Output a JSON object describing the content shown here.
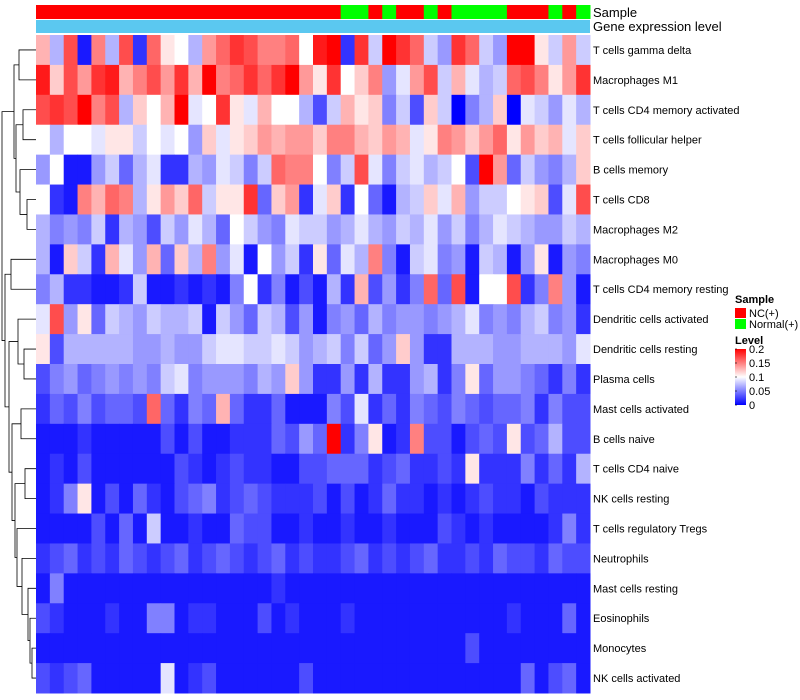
{
  "chart_data": {
    "type": "heatmap",
    "columns": 40,
    "rows": [
      "T cells gamma delta",
      "Macrophages M1",
      "T cells CD4 memory activated",
      "T cells follicular helper",
      "B cells memory",
      "T cells CD8",
      "Macrophages M2",
      "Macrophages M0",
      "T cells CD4 memory resting",
      "Dendritic cells activated",
      "Dendritic cells resting",
      "Plasma cells",
      "Mast cells activated",
      "B cells naive",
      "T cells CD4 naive",
      "NK cells resting",
      "T cells regulatory  Tregs",
      "Neutrophils",
      "Mast cells resting",
      "Eosinophils",
      "Monocytes",
      "NK cells activated"
    ],
    "annotations": {
      "sample_label": "Sample",
      "level_label": "Gene expression level",
      "sample_groups": [
        "NC",
        "NC",
        "NC",
        "NC",
        "NC",
        "NC",
        "NC",
        "NC",
        "NC",
        "NC",
        "NC",
        "NC",
        "NC",
        "NC",
        "NC",
        "NC",
        "NC",
        "NC",
        "NC",
        "NC",
        "NC",
        "NC",
        "Normal",
        "Normal",
        "NC",
        "Normal",
        "NC",
        "NC",
        "Normal",
        "NC",
        "Normal",
        "Normal",
        "Normal",
        "Normal",
        "NC",
        "NC",
        "NC",
        "Normal",
        "NC",
        "Normal"
      ]
    },
    "legend": {
      "sample_title": "Sample",
      "sample_items": [
        {
          "label": "NC(+)",
          "color": "#ff0000"
        },
        {
          "label": "Normal(+)",
          "color": "#00ff00"
        }
      ],
      "level_title": "Level",
      "level_ticks": [
        "0.2",
        "0.15",
        "0.1",
        "0.05",
        "0"
      ],
      "color_low": "#0000ff",
      "color_mid": "#ffffff",
      "color_high": "#ff0000",
      "range": [
        0,
        0.2
      ]
    },
    "values": [
      [
        0.13,
        0.07,
        0.17,
        0.01,
        0.15,
        0.07,
        0.17,
        0.02,
        0.16,
        0.11,
        0.1,
        0.07,
        0.14,
        0.16,
        0.18,
        0.17,
        0.15,
        0.15,
        0.16,
        0.1,
        0.19,
        0.2,
        0.02,
        0.18,
        0.08,
        0.2,
        0.18,
        0.16,
        0.08,
        0.06,
        0.18,
        0.16,
        0.08,
        0.06,
        0.2,
        0.2,
        0.11,
        0.08,
        0.14,
        0.08
      ],
      [
        0.19,
        0.12,
        0.17,
        0.14,
        0.18,
        0.19,
        0.13,
        0.15,
        0.17,
        0.14,
        0.18,
        0.13,
        0.2,
        0.15,
        0.16,
        0.18,
        0.16,
        0.18,
        0.2,
        0.14,
        0.11,
        0.18,
        0.1,
        0.12,
        0.15,
        0.06,
        0.09,
        0.14,
        0.17,
        0.08,
        0.13,
        0.09,
        0.07,
        0.08,
        0.16,
        0.17,
        0.15,
        0.11,
        0.14,
        0.18
      ],
      [
        0.17,
        0.18,
        0.17,
        0.2,
        0.15,
        0.17,
        0.07,
        0.12,
        0.1,
        0.13,
        0.2,
        0.09,
        0.1,
        0.18,
        0.11,
        0.09,
        0.13,
        0.1,
        0.1,
        0.07,
        0.03,
        0.08,
        0.13,
        0.11,
        0.12,
        0.05,
        0.08,
        0.03,
        0.12,
        0.08,
        0.0,
        0.05,
        0.07,
        0.12,
        0.0,
        0.09,
        0.08,
        0.06,
        0.09,
        0.07
      ],
      [
        0.1,
        0.07,
        0.1,
        0.1,
        0.09,
        0.11,
        0.11,
        0.08,
        0.1,
        0.09,
        0.1,
        0.06,
        0.12,
        0.09,
        0.11,
        0.12,
        0.14,
        0.13,
        0.14,
        0.14,
        0.12,
        0.15,
        0.15,
        0.13,
        0.12,
        0.14,
        0.13,
        0.09,
        0.11,
        0.15,
        0.14,
        0.12,
        0.14,
        0.16,
        0.11,
        0.14,
        0.12,
        0.13,
        0.09,
        0.12
      ],
      [
        0.06,
        0.1,
        0.01,
        0.01,
        0.06,
        0.08,
        0.04,
        0.07,
        0.09,
        0.02,
        0.02,
        0.07,
        0.06,
        0.09,
        0.08,
        0.05,
        0.08,
        0.16,
        0.15,
        0.15,
        0.1,
        0.05,
        0.08,
        0.17,
        0.09,
        0.05,
        0.08,
        0.09,
        0.07,
        0.08,
        0.1,
        0.03,
        0.2,
        0.14,
        0.04,
        0.08,
        0.06,
        0.05,
        0.07,
        0.12
      ],
      [
        0.1,
        0.02,
        0.01,
        0.15,
        0.13,
        0.16,
        0.15,
        0.07,
        0.11,
        0.14,
        0.12,
        0.16,
        0.08,
        0.11,
        0.11,
        0.18,
        0.04,
        0.12,
        0.14,
        0.02,
        0.09,
        0.12,
        0.02,
        0.1,
        0.04,
        0.01,
        0.07,
        0.08,
        0.12,
        0.09,
        0.13,
        0.06,
        0.08,
        0.08,
        0.1,
        0.11,
        0.12,
        0.03,
        0.09,
        0.17
      ],
      [
        0.07,
        0.05,
        0.06,
        0.05,
        0.08,
        0.02,
        0.07,
        0.06,
        0.03,
        0.08,
        0.06,
        0.09,
        0.07,
        0.04,
        0.1,
        0.08,
        0.06,
        0.05,
        0.09,
        0.08,
        0.08,
        0.06,
        0.07,
        0.09,
        0.07,
        0.06,
        0.08,
        0.07,
        0.09,
        0.06,
        0.08,
        0.05,
        0.07,
        0.09,
        0.08,
        0.07,
        0.06,
        0.06,
        0.08,
        0.07
      ],
      [
        0.07,
        0.01,
        0.12,
        0.08,
        0.02,
        0.13,
        0.09,
        0.06,
        0.13,
        0.04,
        0.12,
        0.07,
        0.15,
        0.06,
        0.09,
        0.01,
        0.1,
        0.06,
        0.08,
        0.02,
        0.11,
        0.04,
        0.09,
        0.07,
        0.15,
        0.05,
        0.01,
        0.08,
        0.09,
        0.05,
        0.06,
        0.01,
        0.08,
        0.07,
        0.01,
        0.06,
        0.11,
        0.01,
        0.06,
        0.05
      ],
      [
        0.05,
        0.07,
        0.02,
        0.02,
        0.01,
        0.01,
        0.02,
        0.08,
        0.01,
        0.01,
        0.02,
        0.01,
        0.02,
        0.01,
        0.05,
        0.1,
        0.02,
        0.05,
        0.01,
        0.03,
        0.01,
        0.07,
        0.02,
        0.13,
        0.03,
        0.06,
        0.02,
        0.05,
        0.16,
        0.04,
        0.17,
        0.01,
        0.1,
        0.1,
        0.17,
        0.02,
        0.05,
        0.15,
        0.06,
        0.01
      ],
      [
        0.09,
        0.17,
        0.06,
        0.11,
        0.04,
        0.08,
        0.07,
        0.06,
        0.08,
        0.07,
        0.07,
        0.08,
        0.01,
        0.08,
        0.06,
        0.04,
        0.08,
        0.07,
        0.03,
        0.06,
        0.01,
        0.05,
        0.06,
        0.04,
        0.07,
        0.05,
        0.06,
        0.06,
        0.05,
        0.06,
        0.07,
        0.09,
        0.05,
        0.06,
        0.05,
        0.07,
        0.08,
        0.05,
        0.06,
        0.02
      ],
      [
        0.11,
        0.03,
        0.07,
        0.07,
        0.07,
        0.07,
        0.07,
        0.06,
        0.06,
        0.07,
        0.06,
        0.06,
        0.08,
        0.09,
        0.09,
        0.08,
        0.08,
        0.09,
        0.08,
        0.06,
        0.07,
        0.08,
        0.05,
        0.08,
        0.04,
        0.06,
        0.12,
        0.06,
        0.02,
        0.02,
        0.07,
        0.07,
        0.07,
        0.06,
        0.06,
        0.07,
        0.07,
        0.07,
        0.06,
        0.09
      ],
      [
        0.03,
        0.05,
        0.06,
        0.04,
        0.05,
        0.06,
        0.05,
        0.06,
        0.05,
        0.08,
        0.09,
        0.05,
        0.06,
        0.06,
        0.06,
        0.05,
        0.07,
        0.06,
        0.12,
        0.06,
        0.02,
        0.02,
        0.06,
        0.02,
        0.07,
        0.02,
        0.02,
        0.06,
        0.07,
        0.02,
        0.05,
        0.11,
        0.04,
        0.06,
        0.06,
        0.05,
        0.04,
        0.02,
        0.05,
        0.02
      ],
      [
        0.02,
        0.04,
        0.03,
        0.05,
        0.03,
        0.04,
        0.04,
        0.03,
        0.16,
        0.04,
        0.02,
        0.05,
        0.04,
        0.13,
        0.04,
        0.02,
        0.02,
        0.04,
        0.01,
        0.01,
        0.01,
        0.05,
        0.03,
        0.09,
        0.02,
        0.04,
        0.02,
        0.05,
        0.04,
        0.03,
        0.05,
        0.04,
        0.03,
        0.04,
        0.04,
        0.05,
        0.02,
        0.05,
        0.03,
        0.03
      ],
      [
        0.01,
        0.01,
        0.01,
        0.02,
        0.01,
        0.01,
        0.01,
        0.01,
        0.01,
        0.03,
        0.01,
        0.03,
        0.01,
        0.01,
        0.02,
        0.02,
        0.02,
        0.04,
        0.03,
        0.06,
        0.04,
        0.2,
        0.02,
        0.05,
        0.11,
        0.01,
        0.02,
        0.15,
        0.03,
        0.03,
        0.01,
        0.03,
        0.04,
        0.03,
        0.11,
        0.03,
        0.04,
        0.07,
        0.03,
        0.03
      ],
      [
        0.01,
        0.02,
        0.01,
        0.03,
        0.01,
        0.01,
        0.01,
        0.01,
        0.01,
        0.01,
        0.03,
        0.02,
        0.01,
        0.02,
        0.03,
        0.02,
        0.02,
        0.01,
        0.01,
        0.03,
        0.03,
        0.04,
        0.04,
        0.04,
        0.02,
        0.03,
        0.04,
        0.02,
        0.02,
        0.03,
        0.02,
        0.11,
        0.02,
        0.02,
        0.02,
        0.05,
        0.02,
        0.04,
        0.02,
        0.07
      ],
      [
        0.01,
        0.02,
        0.05,
        0.11,
        0.01,
        0.03,
        0.01,
        0.04,
        0.02,
        0.01,
        0.03,
        0.04,
        0.05,
        0.02,
        0.03,
        0.04,
        0.03,
        0.02,
        0.02,
        0.02,
        0.03,
        0.01,
        0.03,
        0.01,
        0.02,
        0.04,
        0.02,
        0.02,
        0.01,
        0.02,
        0.01,
        0.02,
        0.03,
        0.02,
        0.02,
        0.01,
        0.03,
        0.02,
        0.02,
        0.02
      ],
      [
        0.01,
        0.01,
        0.01,
        0.01,
        0.03,
        0.01,
        0.04,
        0.01,
        0.08,
        0.01,
        0.01,
        0.02,
        0.01,
        0.01,
        0.04,
        0.03,
        0.03,
        0.01,
        0.01,
        0.02,
        0.01,
        0.01,
        0.02,
        0.01,
        0.01,
        0.02,
        0.01,
        0.01,
        0.01,
        0.03,
        0.02,
        0.01,
        0.02,
        0.01,
        0.01,
        0.01,
        0.01,
        0.02,
        0.05,
        0.02
      ],
      [
        0.02,
        0.03,
        0.04,
        0.02,
        0.03,
        0.02,
        0.04,
        0.03,
        0.02,
        0.03,
        0.04,
        0.02,
        0.03,
        0.04,
        0.03,
        0.02,
        0.03,
        0.04,
        0.02,
        0.03,
        0.02,
        0.02,
        0.03,
        0.04,
        0.02,
        0.03,
        0.02,
        0.03,
        0.04,
        0.02,
        0.02,
        0.03,
        0.02,
        0.04,
        0.03,
        0.03,
        0.02,
        0.04,
        0.03,
        0.03
      ],
      [
        0.01,
        0.05,
        0.01,
        0.01,
        0.01,
        0.01,
        0.01,
        0.01,
        0.01,
        0.01,
        0.01,
        0.01,
        0.01,
        0.01,
        0.01,
        0.01,
        0.01,
        0.02,
        0.01,
        0.01,
        0.01,
        0.01,
        0.01,
        0.01,
        0.01,
        0.01,
        0.01,
        0.01,
        0.01,
        0.01,
        0.01,
        0.01,
        0.01,
        0.01,
        0.01,
        0.01,
        0.01,
        0.01,
        0.01,
        0.01
      ],
      [
        0.03,
        0.02,
        0.01,
        0.01,
        0.01,
        0.02,
        0.01,
        0.01,
        0.05,
        0.05,
        0.01,
        0.02,
        0.02,
        0.01,
        0.01,
        0.01,
        0.03,
        0.01,
        0.02,
        0.01,
        0.01,
        0.01,
        0.02,
        0.01,
        0.01,
        0.01,
        0.01,
        0.01,
        0.01,
        0.01,
        0.01,
        0.01,
        0.01,
        0.01,
        0.02,
        0.01,
        0.01,
        0.01,
        0.04,
        0.01
      ],
      [
        0.01,
        0.01,
        0.01,
        0.01,
        0.01,
        0.01,
        0.01,
        0.01,
        0.01,
        0.01,
        0.01,
        0.01,
        0.01,
        0.01,
        0.01,
        0.01,
        0.01,
        0.01,
        0.01,
        0.01,
        0.01,
        0.01,
        0.01,
        0.01,
        0.01,
        0.01,
        0.01,
        0.01,
        0.01,
        0.01,
        0.01,
        0.03,
        0.01,
        0.01,
        0.01,
        0.01,
        0.01,
        0.01,
        0.01,
        0.01
      ],
      [
        0.03,
        0.02,
        0.03,
        0.04,
        0.01,
        0.01,
        0.01,
        0.01,
        0.01,
        0.09,
        0.01,
        0.02,
        0.03,
        0.01,
        0.01,
        0.01,
        0.01,
        0.01,
        0.01,
        0.03,
        0.01,
        0.01,
        0.01,
        0.01,
        0.01,
        0.01,
        0.01,
        0.01,
        0.01,
        0.01,
        0.01,
        0.01,
        0.01,
        0.01,
        0.01,
        0.04,
        0.01,
        0.03,
        0.04,
        0.01
      ]
    ]
  }
}
